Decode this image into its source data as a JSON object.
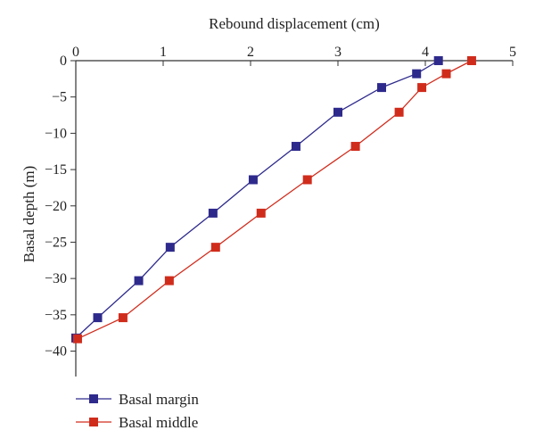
{
  "chart_data": {
    "type": "line",
    "xlabel": "Rebound displacement (cm)",
    "ylabel": "Basal depth (m)",
    "xlim": [
      0,
      5
    ],
    "ylim": [
      -43.5,
      0
    ],
    "x_axis_position": "top",
    "grid": false,
    "legend_position": "bottom-left",
    "x_ticks": [
      0,
      1,
      2,
      3,
      4,
      5
    ],
    "y_ticks": [
      0,
      -5,
      -10,
      -15,
      -20,
      -25,
      -30,
      -35,
      -40
    ],
    "x_tick_labels": [
      "0",
      "1",
      "2",
      "3",
      "4",
      "5"
    ],
    "y_tick_labels": [
      "0",
      "−5",
      "−10",
      "−15",
      "−20",
      "−25",
      "−30",
      "−35",
      "−40"
    ],
    "series": [
      {
        "name": "Basal margin",
        "color": "#2e2a8c",
        "marker": "square",
        "points": [
          [
            4.15,
            0
          ],
          [
            3.9,
            -1.8
          ],
          [
            3.5,
            -3.7
          ],
          [
            3.0,
            -7.1
          ],
          [
            2.52,
            -11.8
          ],
          [
            2.03,
            -16.4
          ],
          [
            1.57,
            -21.0
          ],
          [
            1.08,
            -25.7
          ],
          [
            0.72,
            -30.3
          ],
          [
            0.25,
            -35.4
          ],
          [
            0.0,
            -38.2
          ]
        ]
      },
      {
        "name": "Basal middle",
        "color": "#d02c1c",
        "marker": "square",
        "points": [
          [
            4.53,
            0
          ],
          [
            4.24,
            -1.8
          ],
          [
            3.96,
            -3.7
          ],
          [
            3.7,
            -7.1
          ],
          [
            3.2,
            -11.8
          ],
          [
            2.65,
            -16.4
          ],
          [
            2.12,
            -21.0
          ],
          [
            1.6,
            -25.7
          ],
          [
            1.07,
            -30.3
          ],
          [
            0.54,
            -35.4
          ],
          [
            0.02,
            -38.3
          ]
        ]
      }
    ]
  }
}
